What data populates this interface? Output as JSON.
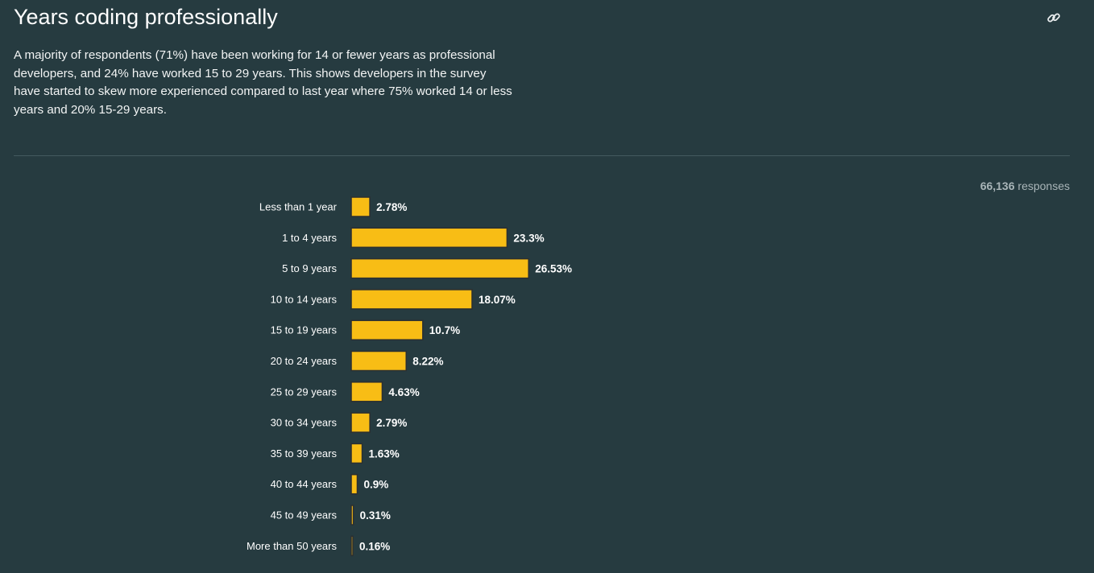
{
  "header": {
    "title": "Years coding professionally",
    "link_icon": "link-icon"
  },
  "description": "A majority of respondents (71%) have been working for 14 or fewer years as professional developers, and 24% have worked 15 to 29 years. This shows developers in the survey have started to skew more experienced compared to last year where 75% worked 14 or less years and 20% 15-29 years.",
  "responses": {
    "count": "66,136",
    "label": "responses"
  },
  "colors": {
    "background": "#263b40",
    "bar_fill": "#f8bd15",
    "bar_stroke": "#2b2f31"
  },
  "chart_data": {
    "type": "bar",
    "orientation": "horizontal",
    "categories": [
      "Less than 1 year",
      "1 to 4 years",
      "5 to 9 years",
      "10 to 14 years",
      "15 to 19 years",
      "20 to 24 years",
      "25 to 29 years",
      "30 to 34 years",
      "35 to 39 years",
      "40 to 44 years",
      "45 to 49 years",
      "More than 50 years"
    ],
    "values": [
      2.78,
      23.3,
      26.53,
      18.07,
      10.7,
      8.22,
      4.63,
      2.79,
      1.63,
      0.9,
      0.31,
      0.16
    ],
    "value_labels": [
      "2.78%",
      "23.3%",
      "26.53%",
      "18.07%",
      "10.7%",
      "8.22%",
      "4.63%",
      "2.79%",
      "1.63%",
      "0.9%",
      "0.31%",
      "0.16%"
    ],
    "unit": "%",
    "title": "",
    "xlabel": "",
    "ylabel": "",
    "grid": false,
    "legend": "none"
  }
}
